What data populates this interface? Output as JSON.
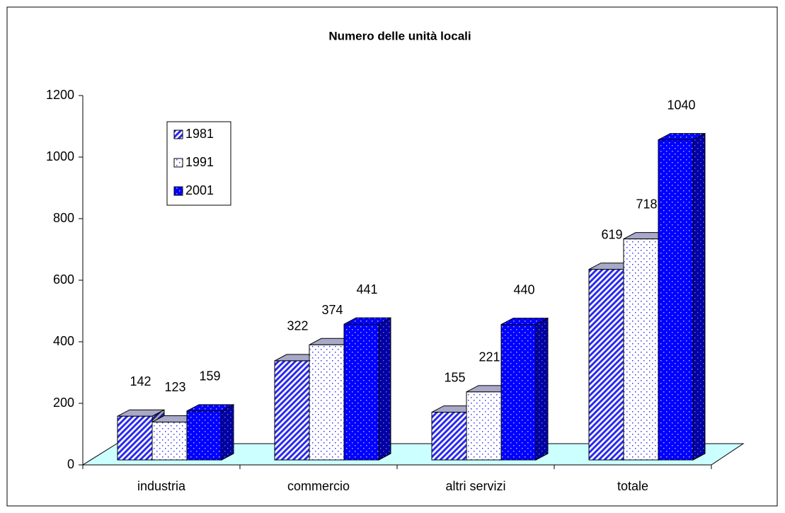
{
  "chart_data": {
    "type": "bar3d",
    "title": "Numero delle unità locali",
    "categories": [
      "industria",
      "commercio",
      "altri servizi",
      "totale"
    ],
    "series": [
      {
        "name": "1981",
        "color": "#2a2aee",
        "values": [
          142,
          322,
          155,
          619
        ]
      },
      {
        "name": "1991",
        "color": "#3a3aee",
        "values": [
          123,
          374,
          221,
          718
        ]
      },
      {
        "name": "2001",
        "color": "#0000ff",
        "values": [
          159,
          441,
          440,
          1040
        ]
      }
    ],
    "ylim": [
      0,
      1200
    ],
    "yticks": [
      0,
      200,
      400,
      600,
      800,
      1000,
      1200
    ],
    "legend": "upper left"
  }
}
